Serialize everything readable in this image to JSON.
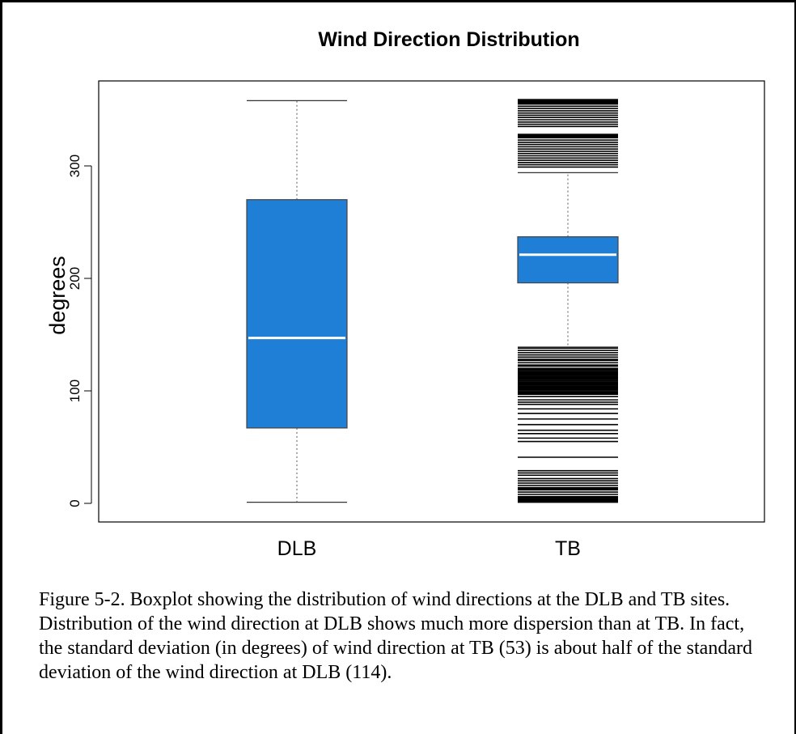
{
  "chart_data": {
    "type": "boxplot",
    "title": "Wind Direction Distribution",
    "ylabel": "degrees",
    "xlabel": "",
    "ylim": [
      -10,
      370
    ],
    "yticks": [
      0,
      100,
      200,
      300
    ],
    "ytick_labels": [
      "0",
      "100",
      "200",
      "300"
    ],
    "grid": false,
    "legend": "none",
    "box_color": "#1f7fd6",
    "median_color": "#ffffff",
    "categories": [
      "DLB",
      "TB"
    ],
    "boxes": [
      {
        "name": "DLB",
        "whisker_low": 1,
        "q1": 67,
        "median": 147,
        "q3": 270,
        "whisker_high": 358,
        "outliers": []
      },
      {
        "name": "TB",
        "whisker_low": 139,
        "q1": 196,
        "median": 221,
        "q3": 237,
        "whisker_high": 294,
        "outliers": [
          1,
          2,
          3,
          4,
          5,
          6,
          8,
          10,
          12,
          13,
          14,
          16,
          18,
          20,
          22,
          25,
          27,
          29,
          41,
          55,
          58,
          62,
          65,
          70,
          75,
          80,
          84,
          88,
          90,
          92,
          95,
          97,
          98,
          99,
          100,
          101,
          102,
          103,
          104,
          105,
          106,
          107,
          108,
          109,
          110,
          111,
          112,
          113,
          114,
          115,
          116,
          117,
          118,
          119,
          120,
          122,
          123,
          125,
          127,
          128,
          130,
          132,
          134,
          136,
          138,
          299,
          301,
          303,
          305,
          307,
          309,
          311,
          313,
          315,
          317,
          319,
          321,
          323,
          325,
          326,
          327,
          328,
          335,
          337,
          339,
          341,
          343,
          345,
          347,
          349,
          351,
          353,
          355,
          356,
          357,
          358,
          359
        ]
      }
    ]
  },
  "caption": "Figure 5-2. Boxplot showing the distribution of wind directions at the DLB and TB sites. Distribution of the wind direction at DLB shows much more dispersion than at TB. In fact, the standard deviation (in degrees) of wind direction at TB (53) is about half of the standard deviation of the wind direction at DLB (114)."
}
